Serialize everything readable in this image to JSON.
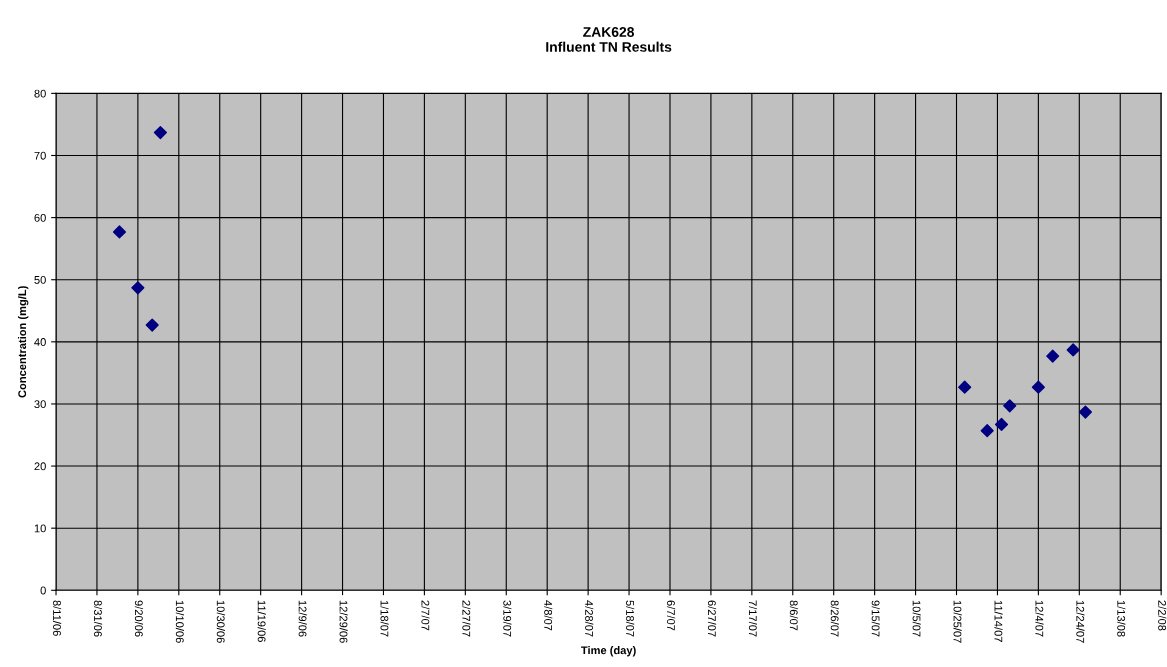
{
  "chart_data": {
    "type": "scatter",
    "title": "ZAK628\nInfluent TN Results",
    "xlabel": "Time (day)",
    "ylabel": "Concentration (mg/L)",
    "series": [
      {
        "color": "#000080",
        "x": [
          "2006-09-11",
          "2006-09-20",
          "2006-09-27",
          "2006-10-01",
          "2007-10-29",
          "2007-11-09",
          "2007-11-16",
          "2007-11-20",
          "2007-12-04",
          "2007-12-11",
          "2007-12-21",
          "2007-12-27"
        ],
        "values": [
          57.7,
          48.7,
          42.7,
          73.7,
          32.7,
          25.7,
          26.7,
          29.7,
          32.7,
          37.7,
          38.7,
          28.7
        ]
      }
    ],
    "xlim": [
      "2006-08-11",
      "2008-02-02"
    ],
    "xticks": [
      {
        "value": "2006-08-11",
        "label": "8/11/06"
      },
      {
        "value": "2006-08-31",
        "label": "8/31/06"
      },
      {
        "value": "2006-09-20",
        "label": "9/20/06"
      },
      {
        "value": "2006-10-10",
        "label": "10/10/06"
      },
      {
        "value": "2006-10-30",
        "label": "10/30/06"
      },
      {
        "value": "2006-11-19",
        "label": "11/19/06"
      },
      {
        "value": "2006-12-09",
        "label": "12/9/06"
      },
      {
        "value": "2006-12-29",
        "label": "12/29/06"
      },
      {
        "value": "2007-01-18",
        "label": "1/18/07"
      },
      {
        "value": "2007-02-07",
        "label": "2/7/07"
      },
      {
        "value": "2007-02-27",
        "label": "2/27/07"
      },
      {
        "value": "2007-03-19",
        "label": "3/19/07"
      },
      {
        "value": "2007-04-08",
        "label": "4/8/07"
      },
      {
        "value": "2007-04-28",
        "label": "4/28/07"
      },
      {
        "value": "2007-05-18",
        "label": "5/18/07"
      },
      {
        "value": "2007-06-07",
        "label": "6/7/07"
      },
      {
        "value": "2007-06-27",
        "label": "6/27/07"
      },
      {
        "value": "2007-07-17",
        "label": "7/17/07"
      },
      {
        "value": "2007-08-06",
        "label": "8/6/07"
      },
      {
        "value": "2007-08-26",
        "label": "8/26/07"
      },
      {
        "value": "2007-09-15",
        "label": "9/15/07"
      },
      {
        "value": "2007-10-05",
        "label": "10/5/07"
      },
      {
        "value": "2007-10-25",
        "label": "10/25/07"
      },
      {
        "value": "2007-11-14",
        "label": "11/14/07"
      },
      {
        "value": "2007-12-04",
        "label": "12/4/07"
      },
      {
        "value": "2007-12-24",
        "label": "12/24/07"
      },
      {
        "value": "2008-01-13",
        "label": "1/13/08"
      },
      {
        "value": "2008-02-02",
        "label": "2/2/08"
      }
    ],
    "ylim": [
      0,
      80
    ],
    "yticks": [
      0,
      10,
      20,
      30,
      40,
      50,
      60,
      70,
      80
    ],
    "grid": true,
    "legend": false,
    "marker": "diamond"
  }
}
